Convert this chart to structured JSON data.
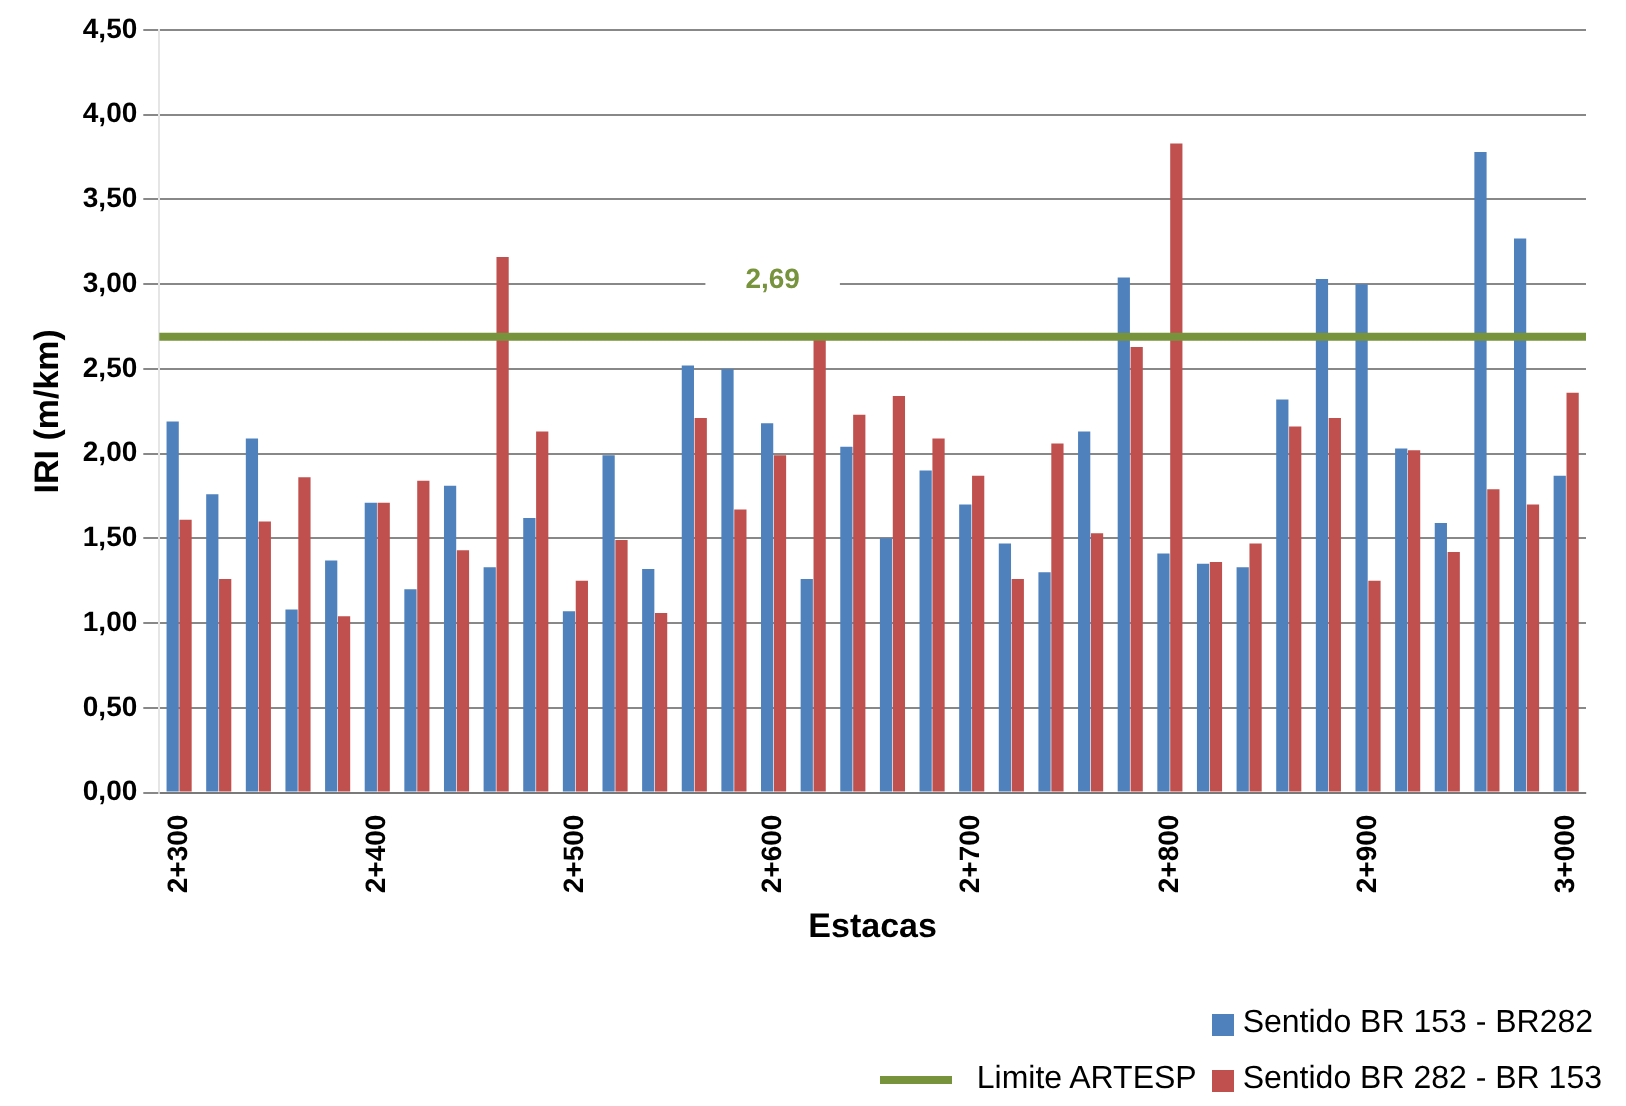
{
  "chart_data": {
    "type": "bar",
    "ylabel": "IRI (m/km)",
    "xlabel": "Estacas",
    "categories": [
      "2+300",
      null,
      null,
      null,
      null,
      "2+400",
      null,
      null,
      null,
      null,
      "2+500",
      null,
      null,
      null,
      null,
      "2+600",
      null,
      null,
      null,
      null,
      "2+700",
      null,
      null,
      null,
      null,
      "2+800",
      null,
      null,
      null,
      null,
      "2+900",
      null,
      null,
      null,
      null,
      "3+000"
    ],
    "series": [
      {
        "name": "Sentido BR 153 - BR282",
        "color": "#4f81bd",
        "values": [
          2.19,
          1.76,
          2.09,
          1.08,
          1.37,
          1.71,
          1.2,
          1.81,
          1.33,
          1.62,
          1.07,
          1.99,
          1.32,
          2.52,
          2.5,
          2.18,
          1.26,
          2.04,
          1.5,
          1.9,
          1.7,
          1.47,
          1.3,
          2.13,
          3.04,
          1.41,
          1.35,
          1.33,
          2.32,
          3.03,
          3.0,
          2.03,
          1.59,
          3.78,
          3.27,
          1.87
        ]
      },
      {
        "name": "Sentido BR 282 - BR 153",
        "color": "#c0504d",
        "values": [
          1.61,
          1.26,
          1.6,
          1.86,
          1.04,
          1.71,
          1.84,
          1.43,
          3.16,
          2.13,
          1.25,
          1.49,
          1.06,
          2.21,
          1.67,
          1.99,
          2.68,
          2.23,
          2.34,
          2.09,
          1.87,
          1.26,
          2.06,
          1.53,
          2.63,
          3.83,
          1.36,
          1.47,
          2.16,
          2.21,
          1.25,
          2.02,
          1.42,
          1.79,
          1.7,
          2.36
        ]
      }
    ],
    "ref_lines": [
      {
        "axis": "y",
        "value": 2.69,
        "label": "Limite ARTESP",
        "color": "#77933c"
      }
    ],
    "annotations": [
      {
        "text": "2,69",
        "y": 2.69
      }
    ],
    "ylim": [
      0,
      4.5
    ],
    "yticks": [
      {
        "value": 0,
        "label": "0,00"
      },
      {
        "value": 0.5,
        "label": "0,50"
      },
      {
        "value": 1,
        "label": "1,00"
      },
      {
        "value": 1.5,
        "label": "1,50"
      },
      {
        "value": 2,
        "label": "2,00"
      },
      {
        "value": 2.5,
        "label": "2,50"
      },
      {
        "value": 3,
        "label": "3,00"
      },
      {
        "value": 3.5,
        "label": "3,50"
      },
      {
        "value": 4,
        "label": "4,00"
      },
      {
        "value": 4.5,
        "label": "4,50"
      }
    ],
    "grid": "y",
    "legend": "bottom right"
  }
}
